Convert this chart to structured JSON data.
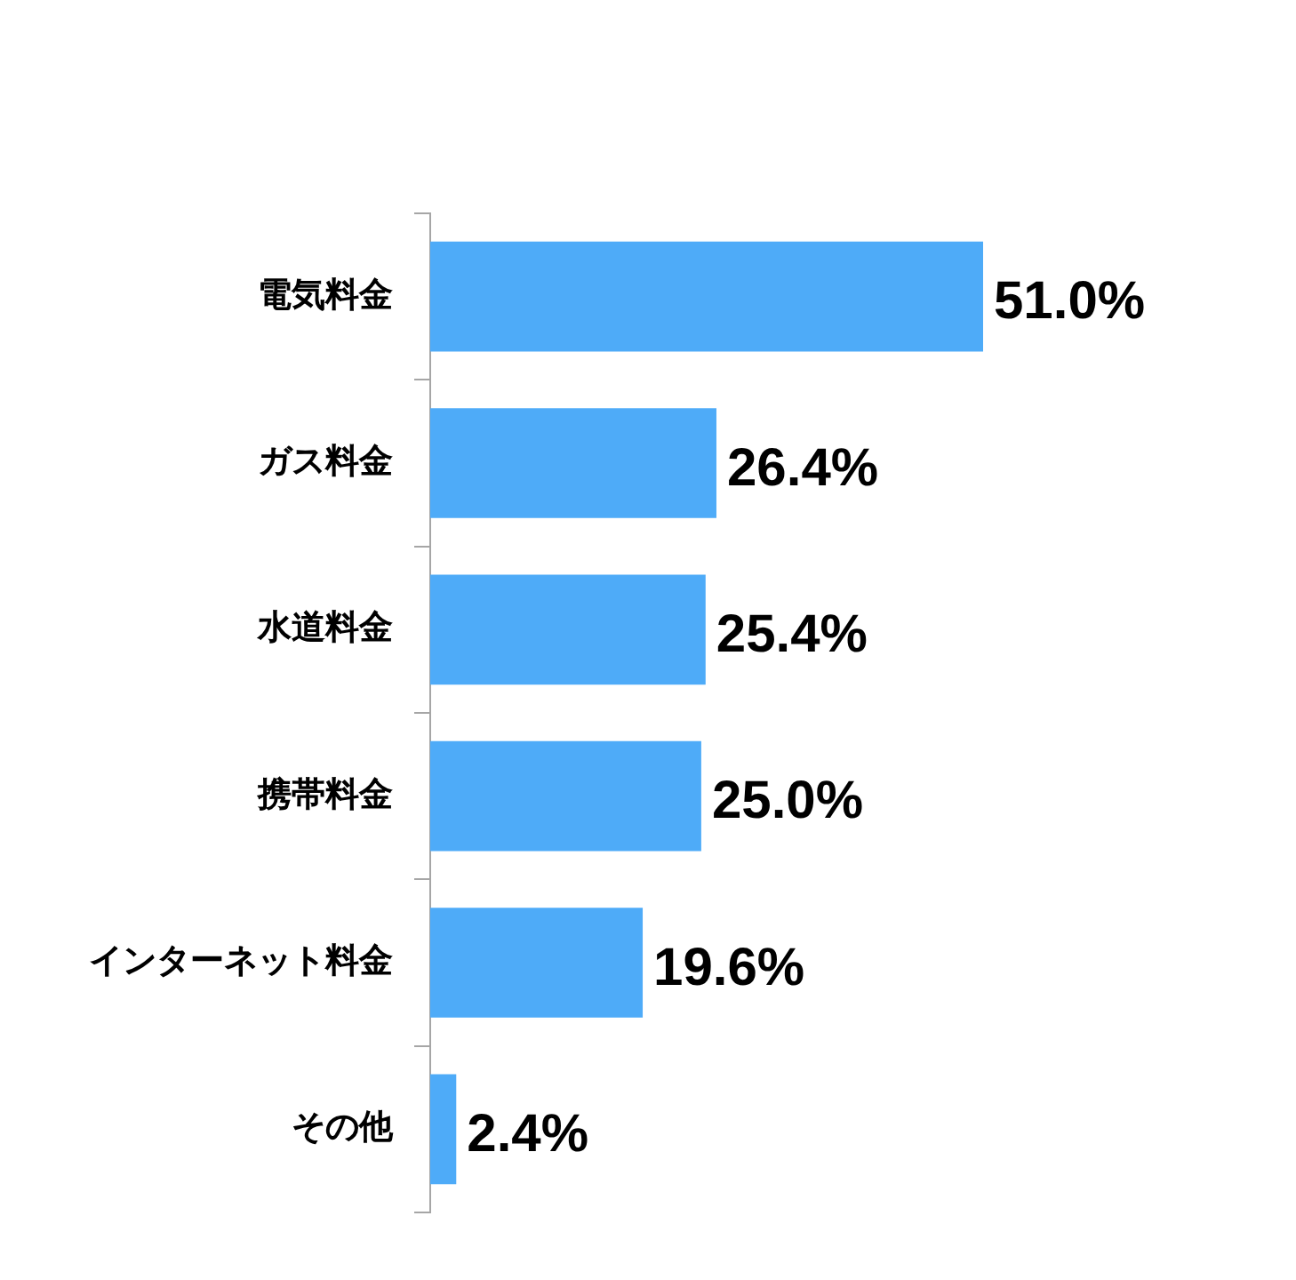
{
  "chart_data": {
    "type": "bar",
    "orientation": "horizontal",
    "categories": [
      "電気料金",
      "ガス料金",
      "水道料金",
      "携帯料金",
      "インターネット料金",
      "その他"
    ],
    "values": [
      51.0,
      26.4,
      25.4,
      25.0,
      19.6,
      2.4
    ],
    "color": "#4eabf8",
    "value_labels": [
      "51.0%",
      "26.4%",
      "25.4%",
      "25.0%",
      "19.6%",
      "2.4%"
    ]
  }
}
